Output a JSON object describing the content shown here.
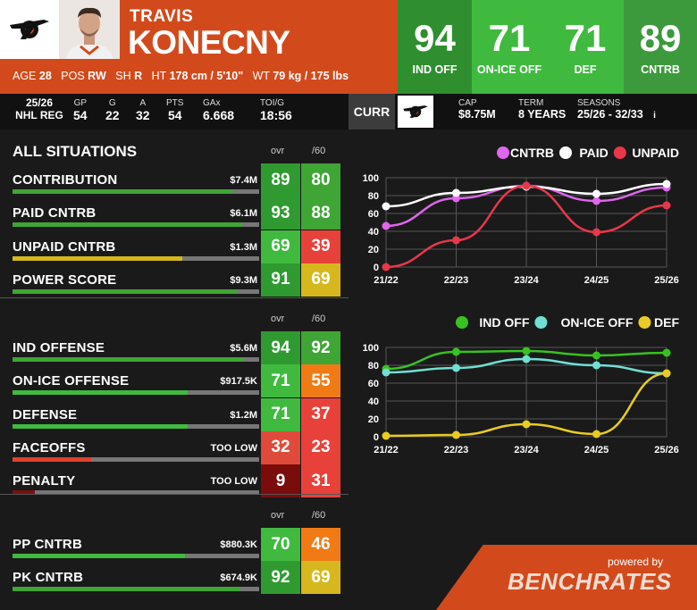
{
  "player": {
    "first_name": "TRAVIS",
    "last_name": "KONECNY",
    "age_label": "AGE",
    "age": "28",
    "pos_label": "POS",
    "pos": "RW",
    "sh_label": "SH",
    "sh": "R",
    "ht_label": "HT",
    "ht": "178 cm / 5'10\"",
    "wt_label": "WT",
    "wt": "79 kg / 175 lbs"
  },
  "header_stats": [
    {
      "value": "94",
      "label": "IND OFF",
      "color": "#2f8f2f"
    },
    {
      "value": "71",
      "label": "ON-ICE OFF",
      "color": "#3fba3f"
    },
    {
      "value": "71",
      "label": "DEF",
      "color": "#3fba3f"
    },
    {
      "value": "89",
      "label": "CNTRB",
      "color": "#3c9a3c"
    }
  ],
  "season": {
    "year": "25/26",
    "league": "NHL REG",
    "cols": [
      {
        "h": "GP",
        "v": "54"
      },
      {
        "h": "G",
        "v": "22"
      },
      {
        "h": "A",
        "v": "32"
      },
      {
        "h": "PTS",
        "v": "54"
      },
      {
        "h": "GAx",
        "v": "6.668"
      },
      {
        "h": "TOI/G",
        "v": "18:56"
      }
    ]
  },
  "contract": {
    "curr_label": "CURR",
    "cap_h": "CAP",
    "cap_v": "$8.75M",
    "term_h": "TERM",
    "term_v": "8 YEARS",
    "seasons_h": "SEASONS",
    "seasons_v": "25/26 - 32/33",
    "info_icon": "i"
  },
  "sections": [
    {
      "title": "ALL SITUATIONS",
      "col1": "ovr",
      "col2": "/60",
      "rows": [
        {
          "label": "CONTRIBUTION",
          "money": "$7.4M",
          "ovr": "89",
          "p60": "80",
          "bar": 0.89,
          "bar_color": "#3fa535"
        },
        {
          "label": "PAID CNTRB",
          "money": "$6.1M",
          "ovr": "93",
          "p60": "88",
          "bar": 0.93,
          "bar_color": "#3fa535"
        },
        {
          "label": "UNPAID CNTRB",
          "money": "$1.3M",
          "ovr": "69",
          "p60": "39",
          "bar": 0.69,
          "bar_color": "#d6b81e"
        },
        {
          "label": "POWER SCORE",
          "money": "$9.3M",
          "ovr": "91",
          "p60": "69",
          "bar": 0.91,
          "bar_color": "#3fa535"
        }
      ]
    },
    {
      "title": "",
      "col1": "ovr",
      "col2": "/60",
      "rows": [
        {
          "label": "IND OFFENSE",
          "money": "$5.6M",
          "ovr": "94",
          "p60": "92",
          "bar": 0.94,
          "bar_color": "#3fa535"
        },
        {
          "label": "ON-ICE OFFENSE",
          "money": "$917.5K",
          "ovr": "71",
          "p60": "55",
          "bar": 0.71,
          "bar_color": "#3fba3f"
        },
        {
          "label": "DEFENSE",
          "money": "$1.2M",
          "ovr": "71",
          "p60": "37",
          "bar": 0.71,
          "bar_color": "#3fba3f"
        },
        {
          "label": "FACEOFFS",
          "money": "TOO LOW",
          "ovr": "32",
          "p60": "23",
          "bar": 0.32,
          "bar_color": "#e0412c"
        },
        {
          "label": "PENALTY",
          "money": "TOO LOW",
          "ovr": "9",
          "p60": "31",
          "bar": 0.09,
          "bar_color": "#7a1010"
        }
      ]
    },
    {
      "title": "",
      "col1": "ovr",
      "col2": "/60",
      "rows": [
        {
          "label": "PP CNTRB",
          "money": "$880.3K",
          "ovr": "70",
          "p60": "46",
          "bar": 0.7,
          "bar_color": "#3fba3f"
        },
        {
          "label": "PK CNTRB",
          "money": "$674.9K",
          "ovr": "92",
          "p60": "69",
          "bar": 0.92,
          "bar_color": "#3fa535"
        }
      ]
    }
  ],
  "chart_data": [
    {
      "type": "line",
      "categories": [
        "21/22",
        "22/23",
        "23/24",
        "24/25",
        "25/26"
      ],
      "ylim": [
        0,
        100
      ],
      "yticks": [
        0,
        20,
        40,
        60,
        80,
        100
      ],
      "legend_position": "top-right",
      "series": [
        {
          "name": "CNTRB",
          "color": "#e066f0",
          "values": [
            46,
            77,
            91,
            74,
            89
          ]
        },
        {
          "name": "PAID",
          "color": "#ffffff",
          "values": [
            68,
            83,
            90,
            82,
            93
          ]
        },
        {
          "name": "UNPAID",
          "color": "#e8374a",
          "values": [
            0,
            30,
            91,
            39,
            69
          ]
        }
      ]
    },
    {
      "type": "line",
      "categories": [
        "21/22",
        "22/23",
        "23/24",
        "24/25",
        "25/26"
      ],
      "ylim": [
        0,
        100
      ],
      "yticks": [
        0,
        20,
        40,
        60,
        80,
        100
      ],
      "legend_position": "top-right",
      "series": [
        {
          "name": "IND OFF",
          "color": "#38c21f",
          "values": [
            76,
            95,
            96,
            91,
            94
          ]
        },
        {
          "name": "ON-ICE OFF",
          "color": "#6fe0d2",
          "values": [
            72,
            77,
            87,
            80,
            71
          ]
        },
        {
          "name": "DEF",
          "color": "#e8cc22",
          "values": [
            1,
            2,
            14,
            3,
            71
          ]
        }
      ]
    }
  ],
  "footer": {
    "powered": "powered by",
    "brand": "BENCHRATES"
  },
  "icons": {
    "team_logo": "flyers-logo-icon",
    "player_photo": "player-photo"
  }
}
